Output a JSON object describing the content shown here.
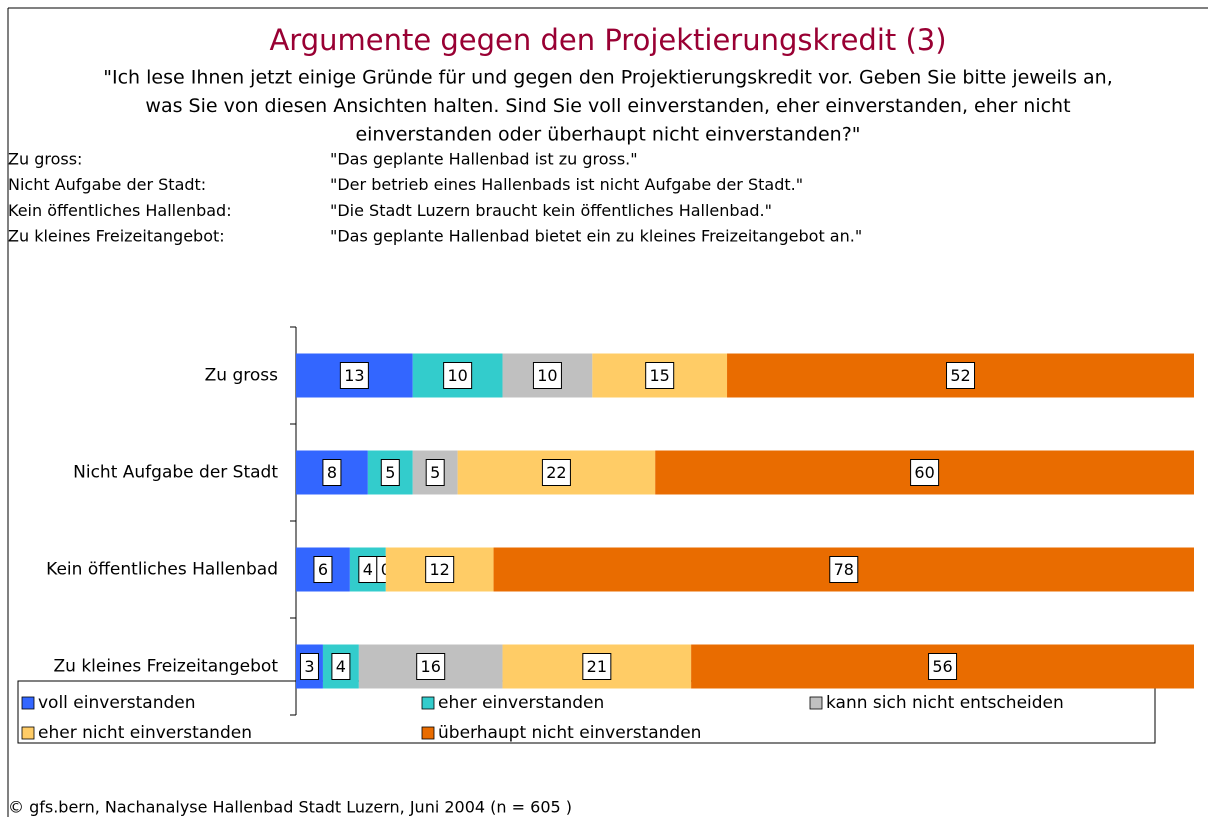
{
  "chart_data": {
    "type": "stacked_barh",
    "title": "Argumente gegen den Projektierungskredit (3)",
    "subtitle": [
      "\"Ich lese Ihnen jetzt einige Gründe für und gegen den Projektierungskredit vor. Geben Sie bitte jeweils an,",
      "was Sie von diesen Ansichten halten. Sind Sie voll einverstanden, eher einverstanden, eher nicht",
      "einverstanden oder überhaupt nicht einverstanden?\""
    ],
    "definitions": [
      {
        "term": "Zu gross:",
        "text": "\"Das geplante Hallenbad ist zu gross.\""
      },
      {
        "term": "Nicht Aufgabe der Stadt:",
        "text": "\"Der betrieb eines Hallenbads ist nicht Aufgabe der Stadt.\""
      },
      {
        "term": "Kein öffentliches Hallenbad:",
        "text": "\"Die Stadt Luzern braucht kein öffentliches Hallenbad.\""
      },
      {
        "term": "Zu kleines Freizeitangebot:",
        "text": "\"Das geplante Hallenbad bietet ein zu kleines Freizeitangebot an.\""
      }
    ],
    "categories": [
      "Zu gross",
      "Nicht Aufgabe der Stadt",
      "Kein öffentliches Hallenbad",
      "Zu kleines Freizeitangebot"
    ],
    "series": [
      {
        "name": "voll einverstanden",
        "color": "#3366ff",
        "values": [
          13,
          8,
          6,
          3
        ]
      },
      {
        "name": "eher einverstanden",
        "color": "#33cccc",
        "values": [
          10,
          5,
          4,
          4
        ]
      },
      {
        "name": "kann sich nicht entscheiden",
        "color": "#c0c0c0",
        "values": [
          10,
          5,
          0,
          16
        ]
      },
      {
        "name": "eher nicht einverstanden",
        "color": "#ffcc66",
        "values": [
          15,
          22,
          12,
          21
        ]
      },
      {
        "name": "überhaupt nicht einverstanden",
        "color": "#e96c00",
        "values": [
          52,
          60,
          78,
          56
        ]
      }
    ],
    "xlim": [
      0,
      100
    ],
    "source": "© gfs.bern, Nachanalyse Hallenbad Stadt Luzern, Juni 2004 (n = 605 )"
  }
}
